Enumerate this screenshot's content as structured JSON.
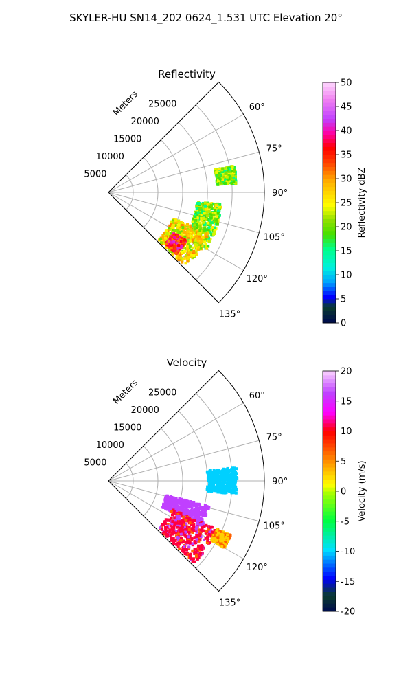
{
  "figure": {
    "title": "SKYLER-HU  SN14_202  0624_1.531 UTC Elevation 20°"
  },
  "chart_data": [
    {
      "type": "heatmap",
      "title": "Reflectivity",
      "radial_axis_label": "Meters",
      "radial_ticks": [
        5000,
        10000,
        15000,
        20000,
        25000
      ],
      "radial_tick_labels": [
        "5000",
        "10000",
        "15000",
        "20000",
        "25000"
      ],
      "rlim": [
        0,
        31500
      ],
      "theta_ticks_deg": [
        60,
        75,
        90,
        105,
        120,
        135
      ],
      "theta_tick_labels": [
        "60°",
        "75°",
        "90°",
        "105°",
        "120°",
        "135°"
      ],
      "theta_range_deg": [
        45,
        135
      ],
      "grid": true,
      "colorbar": {
        "label": "Reflectivity dBZ",
        "range": [
          0,
          50
        ],
        "ticks": [
          0,
          5,
          10,
          15,
          20,
          25,
          30,
          35,
          40,
          45,
          50
        ]
      },
      "echo_regions": [
        {
          "az": [
            96,
            120
          ],
          "range_m": [
            18000,
            23000
          ],
          "typical_value": 20
        },
        {
          "az": [
            112,
            134
          ],
          "range_m": [
            14000,
            22000
          ],
          "typical_value": 25
        },
        {
          "az": [
            122,
            132
          ],
          "range_m": [
            15500,
            18500
          ],
          "typical_value": 35
        },
        {
          "az": [
            78,
            86
          ],
          "range_m": [
            22000,
            26000
          ],
          "typical_value": 20
        }
      ]
    },
    {
      "type": "heatmap",
      "title": "Velocity",
      "radial_axis_label": "Meters",
      "radial_ticks": [
        5000,
        10000,
        15000,
        20000,
        25000
      ],
      "radial_tick_labels": [
        "5000",
        "10000",
        "15000",
        "20000",
        "25000"
      ],
      "rlim": [
        0,
        31500
      ],
      "theta_ticks_deg": [
        60,
        75,
        90,
        105,
        120,
        135
      ],
      "theta_tick_labels": [
        "60°",
        "75°",
        "90°",
        "105°",
        "120°",
        "135°"
      ],
      "theta_range_deg": [
        45,
        135
      ],
      "grid": true,
      "colorbar": {
        "label": "Velocity (m/s)",
        "range": [
          -20,
          20
        ],
        "ticks": [
          -20,
          -15,
          -10,
          -5,
          0,
          5,
          10,
          15,
          20
        ]
      },
      "echo_regions": [
        {
          "az": [
            84,
            96
          ],
          "range_m": [
            20000,
            26000
          ],
          "typical_value": -12
        },
        {
          "az": [
            104,
            116
          ],
          "range_m": [
            12000,
            21000
          ],
          "typical_value": 16
        },
        {
          "az": [
            114,
            134
          ],
          "range_m": [
            14000,
            24000
          ],
          "typical_value": 10
        },
        {
          "az": [
            114,
            120
          ],
          "range_m": [
            24000,
            27000
          ],
          "typical_value": 3
        }
      ]
    }
  ]
}
